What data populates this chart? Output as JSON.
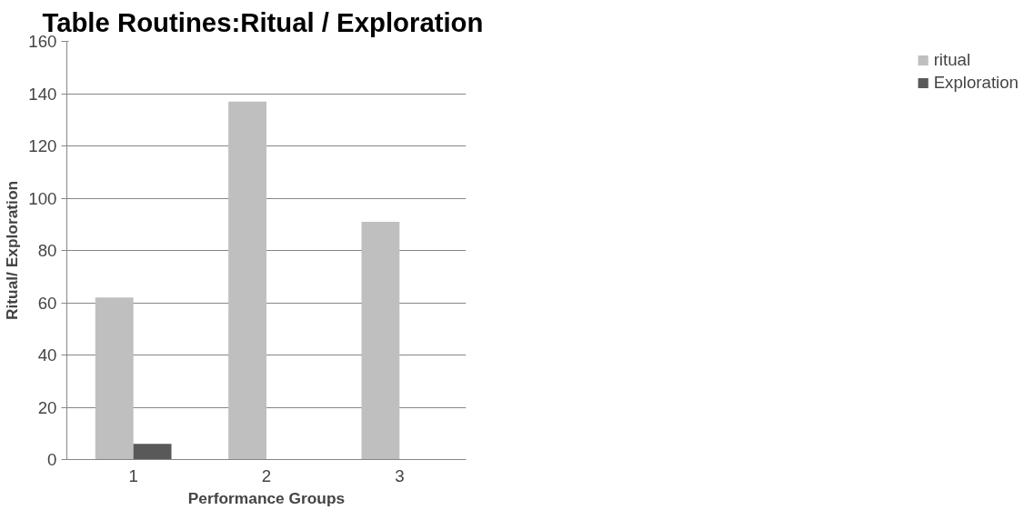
{
  "chart_data": {
    "type": "bar",
    "title": "Table Routines:Ritual  / Exploration",
    "xlabel": "Performance Groups",
    "ylabel": "Ritual/ Exploration",
    "categories": [
      "1",
      "2",
      "3"
    ],
    "series": [
      {
        "name": "ritual",
        "color": "#bfbfbf",
        "values": [
          62,
          137,
          91
        ]
      },
      {
        "name": "Exploration",
        "color": "#595959",
        "values": [
          6,
          0,
          0
        ]
      }
    ],
    "ylim": [
      0,
      160
    ],
    "yticks": [
      0,
      20,
      40,
      60,
      80,
      100,
      120,
      140,
      160
    ],
    "grid": "y",
    "legend": "right"
  }
}
